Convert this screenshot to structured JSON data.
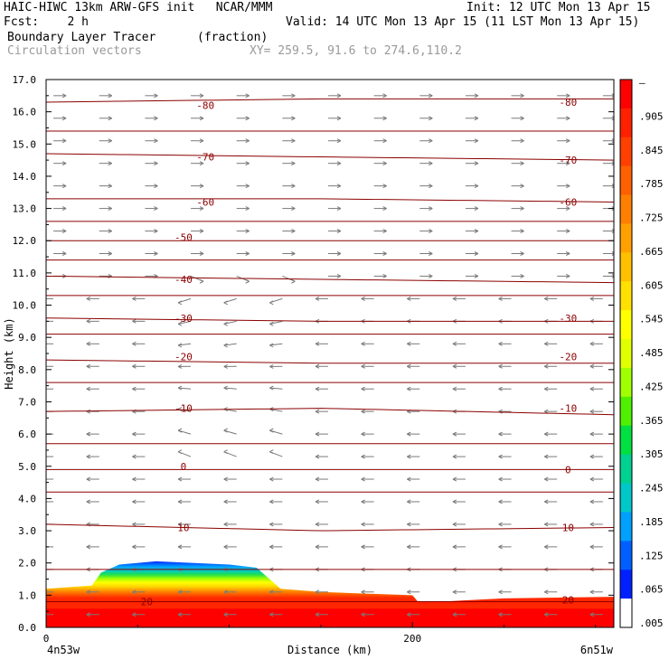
{
  "header": {
    "line1_left": "HAIC-HIWC 13km ARW-GFS init   NCAR/MMM",
    "line1_right": "Init: 12 UTC Mon 13 Apr 15",
    "line2_left": "Fcst:    2 h",
    "line2_right": "Valid: 14 UTC Mon 13 Apr 15 (11 LST Mon 13 Apr 15)",
    "line3_left": "Boundary Layer Tracer",
    "line3_units": "(fraction)",
    "line4_left": "Circulation vectors",
    "line4_xy": "XY= 259.5, 91.6 to 274.6,110.2"
  },
  "chart_data": {
    "type": "heatmap",
    "xlabel": "Distance (km)",
    "ylabel": "Height (km)",
    "xlim": [
      0,
      310
    ],
    "ylim": [
      0,
      17
    ],
    "x_ticks": [
      "0",
      "200"
    ],
    "x_tick_values": [
      0,
      200
    ],
    "x_end_labels": [
      "4n53w",
      "6n51w"
    ],
    "y_ticks": [
      "0.0",
      "1.0",
      "2.0",
      "3.0",
      "4.0",
      "5.0",
      "6.0",
      "7.0",
      "8.0",
      "9.0",
      "10.0",
      "11.0",
      "12.0",
      "13.0",
      "14.0",
      "15.0",
      "16.0",
      "17.0"
    ],
    "colorbar": {
      "labels": [
        "–",
        ".905",
        ".845",
        ".785",
        ".725",
        ".665",
        ".605",
        ".545",
        ".485",
        ".425",
        ".365",
        ".305",
        ".245",
        ".185",
        ".125",
        ".065",
        ".005"
      ],
      "colors": [
        "#ff0000",
        "#ff2000",
        "#ff4000",
        "#ff6000",
        "#ff8000",
        "#ffa000",
        "#ffc000",
        "#ffe000",
        "#ffff00",
        "#e0ff00",
        "#a0ff00",
        "#50f000",
        "#00e040",
        "#00d090",
        "#00c8c8",
        "#00a0ff",
        "#0060ff",
        "#0020ff",
        "#ffffff"
      ]
    },
    "tracer_top_profile": {
      "distance_km": [
        0,
        25,
        30,
        40,
        60,
        100,
        115,
        128,
        150,
        175,
        200,
        203,
        215,
        250,
        310
      ],
      "top_km": [
        1.2,
        1.3,
        1.7,
        1.95,
        2.05,
        1.95,
        1.85,
        1.2,
        1.1,
        1.05,
        1.0,
        0.8,
        0.8,
        0.9,
        0.95
      ]
    },
    "temperature_contours": [
      {
        "label": "-80",
        "profile_km": [
          [
            0,
            16.3
          ],
          [
            150,
            16.4
          ],
          [
            310,
            16.4
          ]
        ],
        "label_positions": [
          [
            87,
            16.2
          ],
          [
            285,
            16.3
          ]
        ]
      },
      {
        "label": "-70",
        "profile_km": [
          [
            0,
            14.7
          ],
          [
            150,
            14.6
          ],
          [
            310,
            14.5
          ]
        ],
        "label_positions": [
          [
            87,
            14.6
          ],
          [
            285,
            14.5
          ]
        ]
      },
      {
        "label": "-60",
        "profile_km": [
          [
            0,
            13.3
          ],
          [
            150,
            13.3
          ],
          [
            310,
            13.2
          ]
        ],
        "label_positions": [
          [
            87,
            13.2
          ],
          [
            285,
            13.2
          ]
        ]
      },
      {
        "label": "-50",
        "profile_km": [
          [
            0,
            12.0
          ],
          [
            150,
            12.0
          ],
          [
            310,
            12.0
          ]
        ],
        "label_positions": [
          [
            75,
            12.1
          ]
        ]
      },
      {
        "label": "-40",
        "profile_km": [
          [
            0,
            10.9
          ],
          [
            150,
            10.8
          ],
          [
            310,
            10.7
          ]
        ],
        "label_positions": [
          [
            75,
            10.8
          ]
        ]
      },
      {
        "label": "-30",
        "profile_km": [
          [
            0,
            9.6
          ],
          [
            150,
            9.5
          ],
          [
            310,
            9.5
          ]
        ],
        "label_positions": [
          [
            75,
            9.6
          ],
          [
            285,
            9.6
          ]
        ]
      },
      {
        "label": "-20",
        "profile_km": [
          [
            0,
            8.3
          ],
          [
            150,
            8.2
          ],
          [
            310,
            8.2
          ]
        ],
        "label_positions": [
          [
            75,
            8.4
          ],
          [
            285,
            8.4
          ]
        ]
      },
      {
        "label": "-10",
        "profile_km": [
          [
            0,
            6.7
          ],
          [
            150,
            6.8
          ],
          [
            310,
            6.6
          ]
        ],
        "label_positions": [
          [
            75,
            6.8
          ],
          [
            285,
            6.8
          ]
        ]
      },
      {
        "label": "0",
        "profile_km": [
          [
            0,
            4.9
          ],
          [
            150,
            4.9
          ],
          [
            310,
            4.9
          ]
        ],
        "label_positions": [
          [
            75,
            5.0
          ],
          [
            285,
            4.9
          ]
        ]
      },
      {
        "label": "10",
        "profile_km": [
          [
            0,
            3.2
          ],
          [
            150,
            3.0
          ],
          [
            310,
            3.1
          ]
        ],
        "label_positions": [
          [
            75,
            3.1
          ],
          [
            285,
            3.1
          ]
        ]
      },
      {
        "label": "20",
        "profile_km": [
          [
            0,
            0.8
          ],
          [
            150,
            0.8
          ],
          [
            310,
            0.8
          ]
        ],
        "label_positions": [
          [
            55,
            0.8
          ],
          [
            285,
            0.85
          ]
        ]
      }
    ],
    "unlabeled_contours_km": [
      15.4,
      12.6,
      11.4,
      10.3,
      9.1,
      7.6,
      5.7,
      4.2,
      1.8
    ],
    "grid": false,
    "legend": "right colorbar"
  }
}
